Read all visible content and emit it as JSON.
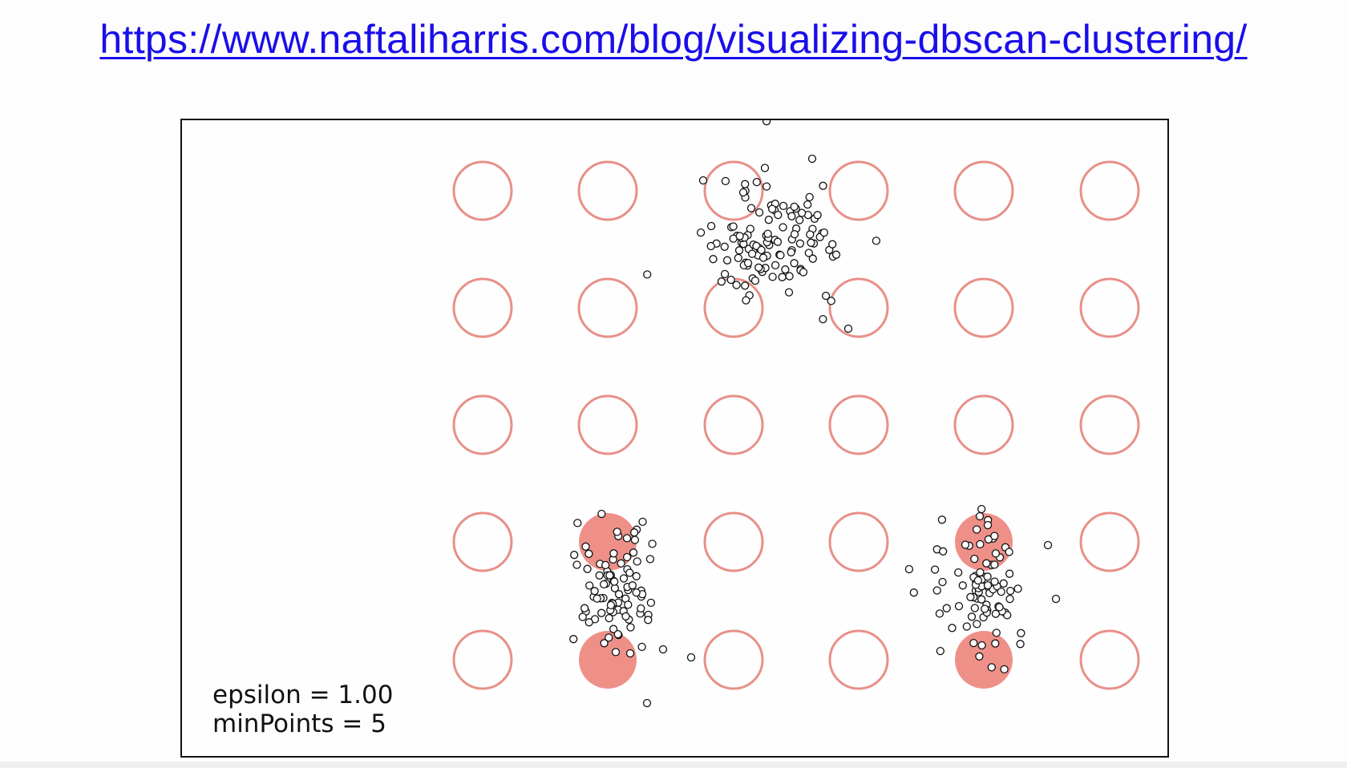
{
  "header": {
    "url_text": "https://www.naftaliharris.com/blog/visualizing-dbscan-clustering/"
  },
  "visualization": {
    "epsilon_text": "epsilon = 1.00",
    "minpoints_text": "minPoints = 5",
    "colors": {
      "circle_outline": "#e89088",
      "circle_filled": "#ee9088",
      "point_stroke": "#111111"
    },
    "grid": {
      "rows": 5,
      "cols": 6,
      "filled": [
        [
          3,
          1
        ],
        [
          4,
          1
        ],
        [
          3,
          4
        ],
        [
          4,
          4
        ]
      ]
    },
    "point_clusters": [
      {
        "center": "top",
        "count": 120
      },
      {
        "center": "bottom-left",
        "count": 85
      },
      {
        "center": "bottom-right",
        "count": 85
      }
    ]
  }
}
